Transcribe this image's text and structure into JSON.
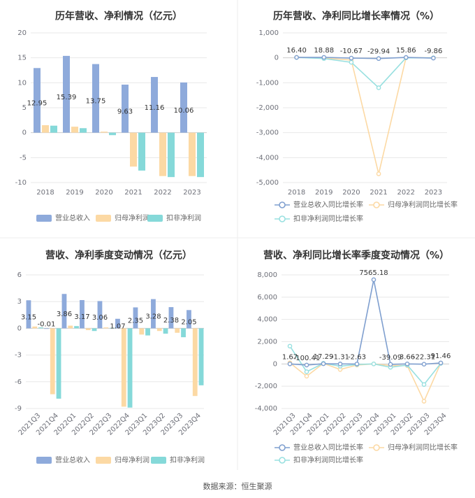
{
  "source": "数据来源：恒生聚源",
  "chart_data": [
    {
      "type": "bar",
      "title": "历年营收、净利情况（亿元）",
      "categories": [
        "2018",
        "2019",
        "2020",
        "2021",
        "2022",
        "2023"
      ],
      "ylim": [
        -10,
        20
      ],
      "yticks": [
        20,
        15,
        10,
        5,
        0,
        -5,
        -10
      ],
      "legend_position": "bottom",
      "series": [
        {
          "name": "营业总收入",
          "color": "#8eaadb",
          "values": [
            12.95,
            15.39,
            13.75,
            9.63,
            11.16,
            10.06
          ],
          "labels": [
            "12.95",
            "15.39",
            "13.75",
            "9.63",
            "11.16",
            "10.06"
          ]
        },
        {
          "name": "归母净利润",
          "color": "#fcd9a4",
          "values": [
            1.5,
            1.2,
            0.2,
            -6.8,
            -8.7,
            -8.7
          ]
        },
        {
          "name": "扣非净利润",
          "color": "#85d9d9",
          "values": [
            1.4,
            0.9,
            -0.5,
            -7.6,
            -8.9,
            -8.9
          ]
        }
      ]
    },
    {
      "type": "line",
      "title": "历年营收、净利同比增长率情况（%）",
      "categories": [
        "2018",
        "2019",
        "2020",
        "2021",
        "2022",
        "2023"
      ],
      "ylim": [
        -5000,
        1000
      ],
      "yticks": [
        "1,000",
        "0",
        "-1,000",
        "-2,000",
        "-3,000",
        "-4,000",
        "-5,000"
      ],
      "ytick_values": [
        1000,
        0,
        -1000,
        -2000,
        -3000,
        -4000,
        -5000
      ],
      "legend_position": "bottom",
      "series": [
        {
          "name": "营业总收入同比增长率",
          "color": "#7f9fcf",
          "values": [
            16.4,
            18.88,
            -10.67,
            -29.94,
            15.86,
            -9.86
          ],
          "labels": [
            "16.40",
            "18.88",
            "-10.67",
            "-29.94",
            "15.86",
            "-9.86"
          ]
        },
        {
          "name": "归母净利润同比增长率",
          "color": "#fcd9a4",
          "values": [
            20,
            -10,
            -90,
            -4650,
            5,
            0
          ]
        },
        {
          "name": "扣非净利润同比增长率",
          "color": "#98e0e0",
          "values": [
            15,
            -30,
            -180,
            -1200,
            0,
            0
          ]
        }
      ]
    },
    {
      "type": "bar",
      "title": "营收、净利季度变动情况（亿元）",
      "categories": [
        "2021Q3",
        "2021Q4",
        "2022Q1",
        "2022Q2",
        "2022Q3",
        "2022Q4",
        "2023Q1",
        "2023Q2",
        "2023Q3",
        "2023Q4"
      ],
      "ylim": [
        -9,
        6
      ],
      "yticks": [
        6,
        3,
        0,
        -3,
        -6,
        -9
      ],
      "legend_position": "bottom",
      "series": [
        {
          "name": "营业总收入",
          "color": "#8eaadb",
          "values": [
            3.15,
            -0.01,
            3.86,
            3.17,
            3.06,
            1.07,
            2.35,
            3.28,
            2.38,
            2.05
          ],
          "labels": [
            "3.15",
            "-0.01",
            "3.86",
            "3.17",
            "3.06",
            "1.07",
            "2.35",
            "3.28",
            "2.38",
            "2.05"
          ]
        },
        {
          "name": "归母净利润",
          "color": "#fcd9a4",
          "values": [
            0.2,
            -7.4,
            0.3,
            -0.2,
            0.1,
            -8.8,
            -0.7,
            -0.3,
            -0.5,
            -7.6
          ]
        },
        {
          "name": "扣非净利润",
          "color": "#85d9d9",
          "values": [
            0.1,
            -7.9,
            0.25,
            -0.3,
            0.05,
            -8.9,
            -0.8,
            -0.6,
            -1.0,
            -6.4
          ]
        }
      ]
    },
    {
      "type": "line",
      "title": "营收、净利同比增长率季度变动情况（%）",
      "categories": [
        "2021Q3",
        "2021Q4",
        "2022Q1",
        "2022Q2",
        "2022Q3",
        "2022Q4",
        "2023Q1",
        "2023Q2",
        "2023Q3",
        "2023Q4"
      ],
      "ylim": [
        -4000,
        8000
      ],
      "yticks": [
        "8,000",
        "6,000",
        "4,000",
        "2,000",
        "0",
        "-2,000",
        "-4,000"
      ],
      "ytick_values": [
        8000,
        6000,
        4000,
        2000,
        0,
        -2000,
        -4000
      ],
      "legend_position": "bottom",
      "series": [
        {
          "name": "营业总收入同比增长率",
          "color": "#7f9fcf",
          "values": [
            1.67,
            -100.41,
            17.29,
            -1.31,
            -2.63,
            7565.18,
            -39.09,
            3.66,
            -22.31,
            91.46
          ],
          "labels": [
            "1.67",
            "-100.41",
            "17.29",
            "-1.31",
            "-2.63",
            "7565.18",
            "-39.09",
            "3.66",
            "-22.31",
            "91.46"
          ]
        },
        {
          "name": "归母净利润同比增长率",
          "color": "#fcd9a4",
          "values": [
            100,
            -1100,
            50,
            -500,
            -100,
            0,
            -150,
            -150,
            -3350,
            80
          ]
        },
        {
          "name": "扣非净利润同比增长率",
          "color": "#98e0e0",
          "values": [
            1600,
            -700,
            60,
            -200,
            -50,
            0,
            -300,
            -100,
            -1850,
            50
          ]
        }
      ]
    }
  ]
}
